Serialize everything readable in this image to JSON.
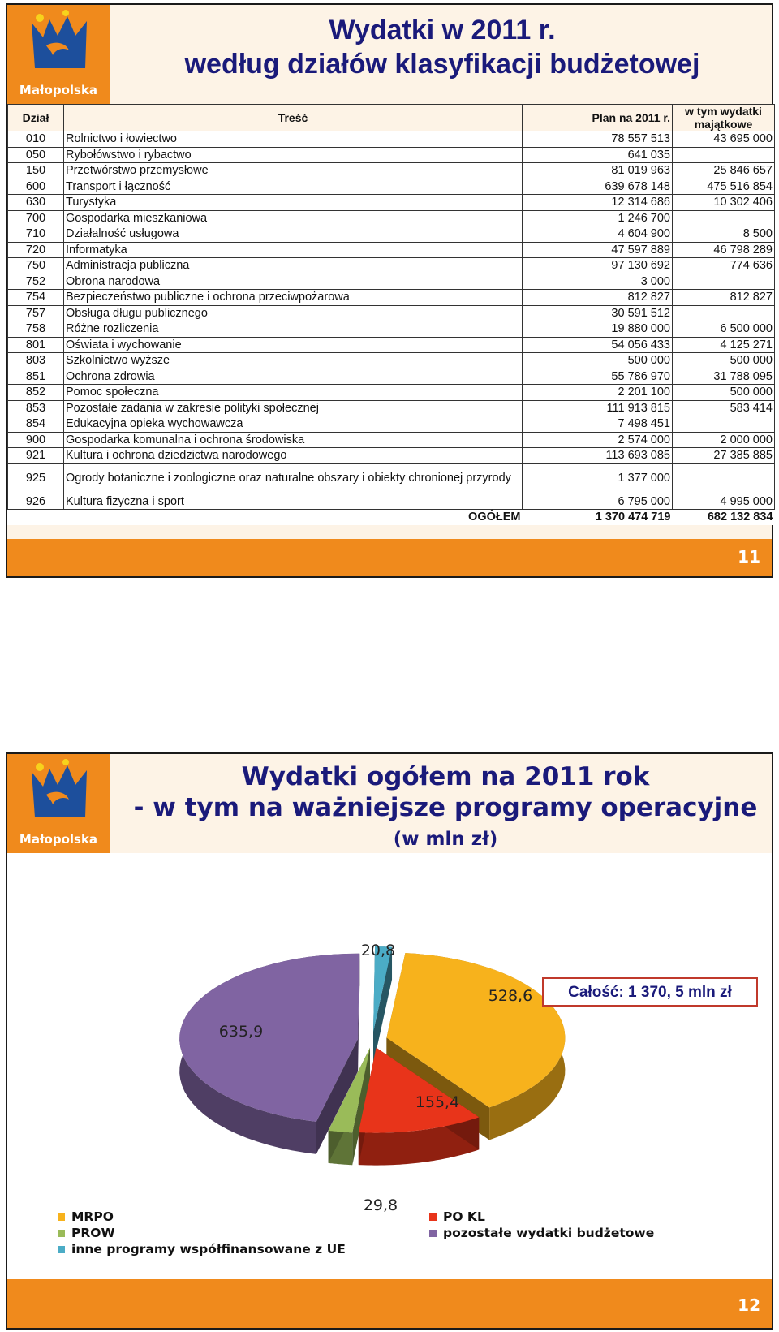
{
  "brand": "Małopolska",
  "colors": {
    "brand_orange": "#f08a1c",
    "title_navy": "#1a1a7a",
    "mrpo": "#f7b21c",
    "pokl": "#e8341a",
    "prow": "#9abb59",
    "inne": "#4bacc6",
    "pozostale": "#8064a2"
  },
  "slide1": {
    "title_line1": "Wydatki w 2011 r.",
    "title_line2": "według działów klasyfikacji budżetowej",
    "page_number": "11",
    "columns": {
      "code": "Dział",
      "name": "Treść",
      "plan": "Plan na 2011 r.",
      "majatkowe": "w tym wydatki majątkowe"
    },
    "rows": [
      {
        "code": "010",
        "name": "Rolnictwo i łowiectwo",
        "plan": "78 557 513",
        "maj": "43 695 000"
      },
      {
        "code": "050",
        "name": "Rybołówstwo i rybactwo",
        "plan": "641 035",
        "maj": ""
      },
      {
        "code": "150",
        "name": "Przetwórstwo przemysłowe",
        "plan": "81 019 963",
        "maj": "25 846 657"
      },
      {
        "code": "600",
        "name": "Transport i łączność",
        "plan": "639 678 148",
        "maj": "475 516 854"
      },
      {
        "code": "630",
        "name": "Turystyka",
        "plan": "12 314 686",
        "maj": "10 302 406"
      },
      {
        "code": "700",
        "name": "Gospodarka mieszkaniowa",
        "plan": "1 246 700",
        "maj": ""
      },
      {
        "code": "710",
        "name": "Działalność usługowa",
        "plan": "4 604 900",
        "maj": "8 500"
      },
      {
        "code": "720",
        "name": "Informatyka",
        "plan": "47 597 889",
        "maj": "46 798 289"
      },
      {
        "code": "750",
        "name": "Administracja publiczna",
        "plan": "97 130 692",
        "maj": "774 636"
      },
      {
        "code": "752",
        "name": "Obrona narodowa",
        "plan": "3 000",
        "maj": ""
      },
      {
        "code": "754",
        "name": "Bezpieczeństwo publiczne i ochrona przeciwpożarowa",
        "plan": "812 827",
        "maj": "812 827"
      },
      {
        "code": "757",
        "name": "Obsługa długu publicznego",
        "plan": "30 591 512",
        "maj": ""
      },
      {
        "code": "758",
        "name": "Różne rozliczenia",
        "plan": "19 880 000",
        "maj": "6 500 000"
      },
      {
        "code": "801",
        "name": "Oświata i wychowanie",
        "plan": "54 056 433",
        "maj": "4 125 271"
      },
      {
        "code": "803",
        "name": "Szkolnictwo wyższe",
        "plan": "500 000",
        "maj": "500 000"
      },
      {
        "code": "851",
        "name": "Ochrona zdrowia",
        "plan": "55 786 970",
        "maj": "31 788 095"
      },
      {
        "code": "852",
        "name": "Pomoc społeczna",
        "plan": "2 201 100",
        "maj": "500 000"
      },
      {
        "code": "853",
        "name": "Pozostałe zadania w zakresie polityki społecznej",
        "plan": "111 913 815",
        "maj": "583 414"
      },
      {
        "code": "854",
        "name": "Edukacyjna opieka wychowawcza",
        "plan": "7 498 451",
        "maj": ""
      },
      {
        "code": "900",
        "name": "Gospodarka komunalna i ochrona środowiska",
        "plan": "2 574 000",
        "maj": "2 000 000"
      },
      {
        "code": "921",
        "name": "Kultura i ochrona dziedzictwa narodowego",
        "plan": "113 693 085",
        "maj": "27 385 885"
      },
      {
        "code": "925",
        "name": "Ogrody botaniczne i zoologiczne oraz naturalne obszary i obiekty chronionej przyrody",
        "plan": "1 377 000",
        "maj": ""
      },
      {
        "code": "926",
        "name": "Kultura fizyczna i sport",
        "plan": "6 795 000",
        "maj": "4 995 000"
      }
    ],
    "total": {
      "label": "OGÓŁEM",
      "plan": "1 370 474 719",
      "maj": "682 132 834"
    }
  },
  "slide2": {
    "title_line1": "Wydatki ogółem na 2011 rok",
    "title_line2": "- w tym na ważniejsze programy operacyjne",
    "title_line3": "(w mln zł)",
    "total_box": "Całość: 1 370, 5 mln zł",
    "page_number": "12",
    "legend_left": [
      "MRPO",
      "PROW",
      "inne programy współfinansowane  z UE"
    ],
    "legend_right": [
      "PO KL",
      "pozostałe wydatki budżetowe"
    ]
  },
  "chart_data": {
    "type": "pie",
    "title": "",
    "slices": [
      {
        "name": "MRPO",
        "value": 528.6,
        "label": "528,6"
      },
      {
        "name": "PO KL",
        "value": 155.4,
        "label": "155,4"
      },
      {
        "name": "PROW",
        "value": 29.8,
        "label": "29,8"
      },
      {
        "name": "pozostałe wydatki budżetowe",
        "value": 635.9,
        "label": "635,9"
      },
      {
        "name": "inne programy współfinansowane  z UE",
        "value": 20.8,
        "label": "20,8"
      }
    ],
    "legend_position": "bottom"
  }
}
